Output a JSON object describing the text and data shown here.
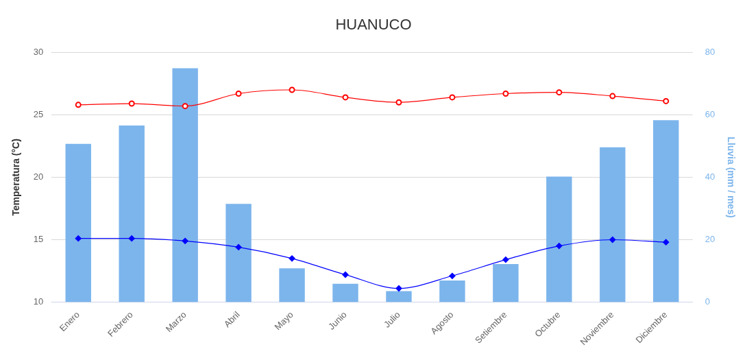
{
  "chart_data": {
    "type": "bar",
    "title": "HUANUCO",
    "ylabel": "Temperatura (°C)",
    "y2label": "Lluvia (mm / mes)",
    "categories": [
      "Enero",
      "Febrero",
      "Marzo",
      "Abril",
      "Mayo",
      "Junio",
      "Julio",
      "Agosto",
      "Setiembre",
      "Octubre",
      "Noviembre",
      "Diciembre"
    ],
    "series": [
      {
        "axis": "y2",
        "color": "#7cb5ec",
        "values": [
          50.7,
          56.6,
          74.9,
          31.5,
          10.8,
          5.9,
          3.5,
          6.9,
          12.2,
          40.2,
          49.6,
          58.3
        ]
      },
      {
        "type": "line",
        "color": "#ff0000",
        "marker": "circle",
        "values": [
          25.8,
          25.9,
          25.7,
          26.7,
          27.0,
          26.4,
          26.0,
          26.4,
          26.7,
          26.8,
          26.5,
          26.1
        ]
      },
      {
        "type": "line",
        "color": "#0000ff",
        "marker": "diamond",
        "values": [
          15.1,
          15.1,
          14.9,
          14.4,
          13.5,
          12.2,
          11.1,
          12.1,
          13.4,
          14.5,
          15.0,
          14.8
        ]
      }
    ],
    "ylim": [
      10,
      30
    ],
    "yticks": [
      10,
      15,
      20,
      25,
      30
    ],
    "y2lim": [
      0,
      80
    ],
    "y2ticks": [
      0,
      20,
      40,
      60,
      80
    ],
    "grid": "y",
    "legend": false
  }
}
